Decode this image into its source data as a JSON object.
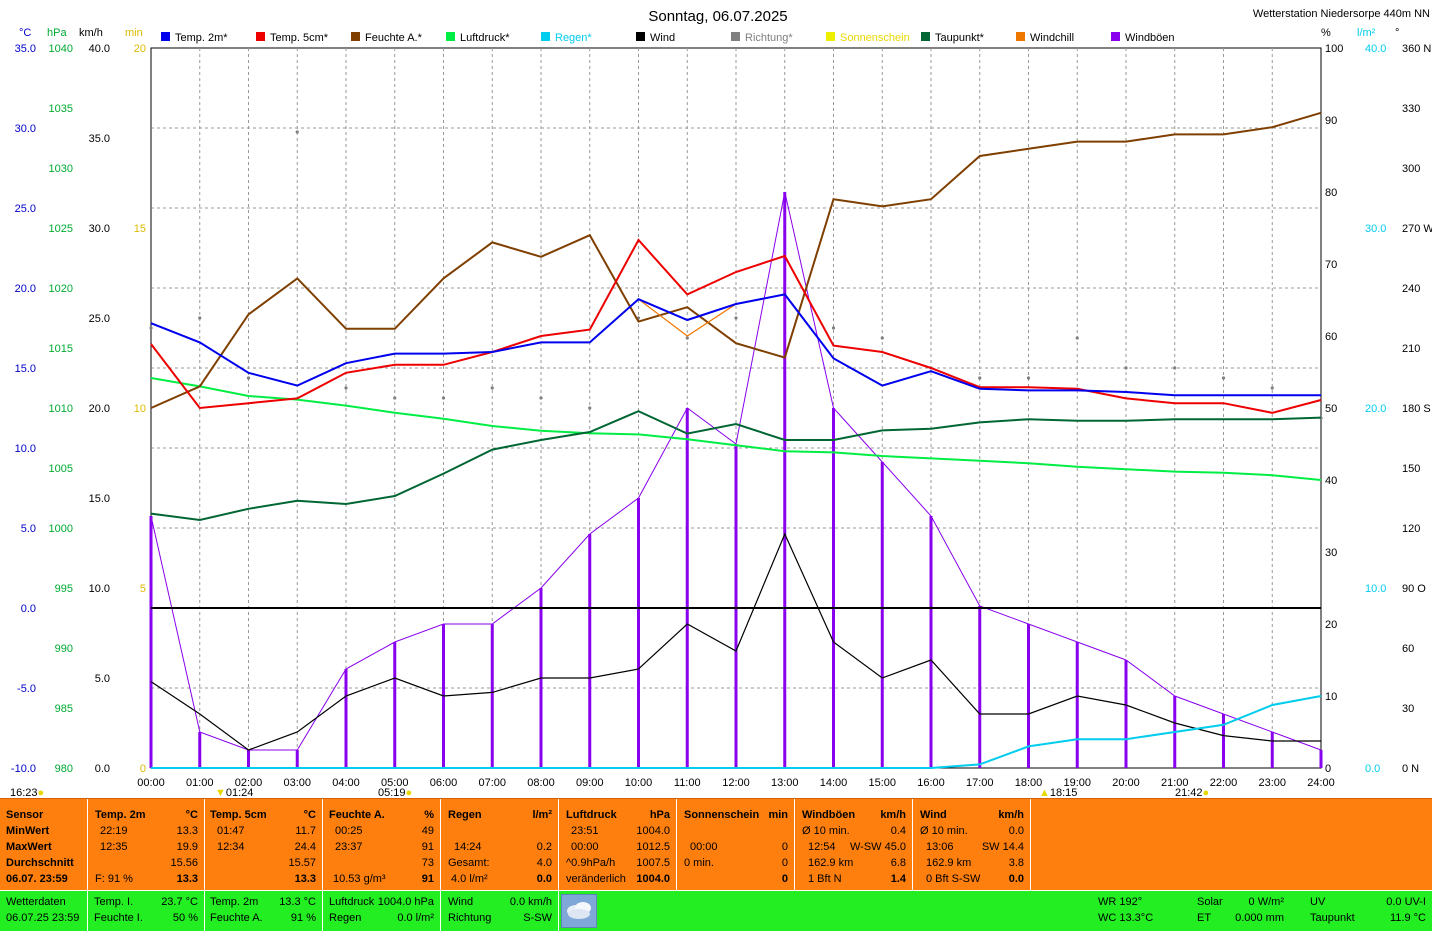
{
  "header": {
    "title": "Sonntag, 06.07.2025",
    "station": "Wetterstation Niedersorpe 440m NN"
  },
  "axes_units": {
    "temp": "°C",
    "pressure": "hPa",
    "speed": "km/h",
    "minutes": "min",
    "percent": "%",
    "rain": "l/m²",
    "direction": "°"
  },
  "axis_ticks": {
    "temp": [
      "35.0",
      "30.0",
      "25.0",
      "20.0",
      "15.0",
      "10.0",
      "5.0",
      "0.0",
      "-5.0",
      "-10.0"
    ],
    "pressure": [
      "1040",
      "1035",
      "1030",
      "1025",
      "1020",
      "1015",
      "1010",
      "1005",
      "1000",
      "995",
      "990",
      "985",
      "980"
    ],
    "speed": [
      "40.0",
      "35.0",
      "30.0",
      "25.0",
      "20.0",
      "15.0",
      "10.0",
      "5.0",
      "0.0"
    ],
    "minutes": [
      "20",
      "15",
      "10",
      "5",
      "0"
    ],
    "percent": [
      "100",
      "90",
      "80",
      "70",
      "60",
      "50",
      "40",
      "30",
      "20",
      "10",
      "0"
    ],
    "rain": [
      "40.0",
      "30.0",
      "20.0",
      "10.0",
      "0.0"
    ],
    "direction": [
      "360 N",
      "330",
      "300",
      "270 W",
      "240",
      "210",
      "180 S",
      "150",
      "120",
      "90 O",
      "60",
      "30",
      "0 N"
    ]
  },
  "sun": {
    "sunrise": "05:19",
    "sunset": "21:42",
    "mark1": "16:23",
    "mark2": "01:24",
    "mark3": "18:15"
  },
  "chart_data": {
    "type": "line",
    "x": [
      "00:00",
      "01:00",
      "02:00",
      "03:00",
      "04:00",
      "05:00",
      "06:00",
      "07:00",
      "08:00",
      "09:00",
      "10:00",
      "11:00",
      "12:00",
      "13:00",
      "14:00",
      "15:00",
      "16:00",
      "17:00",
      "18:00",
      "19:00",
      "20:00",
      "21:00",
      "22:00",
      "23:00",
      "24:00"
    ],
    "xlabel": "",
    "ylim_temp": [
      -10,
      35
    ],
    "ylim_pressure": [
      980,
      1040
    ],
    "ylim_speed": [
      0,
      40
    ],
    "ylim_percent": [
      0,
      100
    ],
    "ylim_rain": [
      0,
      40
    ],
    "ylim_direction": [
      0,
      360
    ],
    "grid": true,
    "legend_position": "top",
    "series": [
      {
        "name": "Temp. 2m*",
        "color": "#0000ee",
        "axis": "temp",
        "values": [
          17.8,
          16.6,
          14.7,
          13.9,
          15.3,
          15.9,
          15.9,
          16.0,
          16.6,
          16.6,
          19.3,
          18.0,
          19.0,
          19.6,
          15.6,
          13.9,
          14.8,
          13.7,
          13.6,
          13.6,
          13.5,
          13.3,
          13.3,
          13.3,
          13.3
        ]
      },
      {
        "name": "Temp. 5cm*",
        "color": "#ee0000",
        "axis": "temp",
        "values": [
          16.5,
          12.5,
          12.8,
          13.1,
          14.7,
          15.2,
          15.2,
          16.0,
          17.0,
          17.4,
          23.0,
          19.6,
          21.0,
          22.0,
          16.4,
          16.0,
          15.0,
          13.8,
          13.8,
          13.7,
          13.1,
          12.8,
          12.8,
          12.2,
          13.0
        ]
      },
      {
        "name": "Feuchte A.*",
        "color": "#7f3f00",
        "axis": "percent",
        "values": [
          50,
          53,
          63,
          68,
          61,
          61,
          68,
          73,
          71,
          74,
          62,
          64,
          59,
          57,
          79,
          78,
          79,
          85,
          86,
          87,
          87,
          88,
          88,
          89,
          91
        ]
      },
      {
        "name": "Luftdruck*",
        "color": "#00ee44",
        "axis": "pressure",
        "values": [
          1012.5,
          1011.8,
          1011.0,
          1010.7,
          1010.2,
          1009.6,
          1009.1,
          1008.5,
          1008.1,
          1007.9,
          1007.8,
          1007.4,
          1006.9,
          1006.4,
          1006.3,
          1006.0,
          1005.8,
          1005.6,
          1005.4,
          1005.1,
          1004.9,
          1004.7,
          1004.6,
          1004.4,
          1004.0
        ]
      },
      {
        "name": "Taupunkt*",
        "color": "#006633",
        "axis": "temp",
        "values": [
          5.9,
          5.5,
          6.2,
          6.7,
          6.5,
          7.0,
          8.4,
          9.9,
          10.5,
          11.0,
          12.3,
          10.9,
          11.5,
          10.5,
          10.5,
          11.1,
          11.2,
          11.6,
          11.8,
          11.7,
          11.7,
          11.8,
          11.8,
          11.8,
          11.9
        ]
      },
      {
        "name": "Wind",
        "color": "#000000",
        "axis": "speed",
        "values": [
          4.8,
          3.0,
          1.0,
          2.0,
          4.0,
          5.0,
          4.0,
          4.2,
          5.0,
          5.0,
          5.5,
          8.0,
          6.5,
          13.0,
          7.0,
          5.0,
          6.0,
          3.0,
          3.0,
          4.0,
          3.5,
          2.5,
          1.8,
          1.5,
          1.5
        ]
      },
      {
        "name": "Windböen",
        "color": "#8800ee",
        "axis": "speed",
        "values": [
          14.0,
          2.0,
          1.0,
          1.0,
          5.5,
          7.0,
          8.0,
          8.0,
          10.0,
          13.0,
          15.0,
          20.0,
          18.0,
          32.0,
          20.0,
          17.0,
          14.0,
          9.0,
          8.0,
          7.0,
          6.0,
          4.0,
          3.0,
          2.0,
          1.0
        ]
      },
      {
        "name": "Regen*",
        "color": "#00ccee",
        "axis": "rain",
        "values": [
          0,
          0,
          0,
          0,
          0,
          0,
          0,
          0,
          0,
          0,
          0,
          0,
          0,
          0,
          0,
          0,
          0,
          0.2,
          1.2,
          1.6,
          1.6,
          2.0,
          2.4,
          3.5,
          4.0
        ]
      },
      {
        "name": "Richtung*",
        "color": "#808080",
        "axis": "direction",
        "values": [
          220,
          225,
          195,
          318,
          190,
          185,
          185,
          190,
          185,
          180,
          225,
          215,
          225,
          200,
          220,
          215,
          200,
          195,
          195,
          215,
          200,
          200,
          195,
          190,
          175
        ]
      },
      {
        "name": "Windchill",
        "color": "#ee7700",
        "axis": "temp",
        "values": [
          17.8,
          16.6,
          14.7,
          13.9,
          15.3,
          15.9,
          15.9,
          16.0,
          16.6,
          16.6,
          19.3,
          17.0,
          19.0,
          19.6,
          15.6,
          13.9,
          14.8,
          13.7,
          13.6,
          13.6,
          13.5,
          13.3,
          13.3,
          13.3,
          13.3
        ]
      },
      {
        "name": "Sonnenschein",
        "color": "#eeee00",
        "axis": "minutes",
        "values": [
          0,
          0,
          0,
          0,
          0,
          0,
          0,
          0,
          0,
          0,
          0,
          0,
          0,
          0,
          0,
          0,
          0,
          0,
          0,
          0,
          0,
          0,
          0,
          0,
          0
        ]
      }
    ]
  },
  "table": {
    "sensor": {
      "header": "Sensor",
      "rows": [
        "MinWert",
        "MaxWert",
        "Durchschnitt",
        "06.07. 23:59"
      ]
    },
    "temp2m": {
      "header": "Temp. 2m",
      "unit": "°C",
      "min_time": "22:19",
      "min_val": "13.3",
      "max_time": "12:35",
      "max_val": "19.9",
      "avg": "15.56",
      "last_f": "F: 91 %",
      "last_val": "13.3"
    },
    "temp5cm": {
      "header": "Temp. 5cm",
      "unit": "°C",
      "min_time": "01:47",
      "min_val": "11.7",
      "max_time": "12:34",
      "max_val": "24.4",
      "avg": "15.57",
      "last_val": "13.3"
    },
    "feuchte": {
      "header": "Feuchte A.",
      "unit": "%",
      "min_time": "00:25",
      "min_val": "49",
      "max_time": "23:37",
      "max_val": "91",
      "avg": "73",
      "last_abs": "10.53 g/m³",
      "last_val": "91"
    },
    "regen": {
      "header": "Regen",
      "unit": "l/m²",
      "r2_time": "14:24",
      "r2_val": "0.2",
      "r3_label": "Gesamt:",
      "r3_val": "4.0",
      "last_rate": "4.0 l/m²",
      "last_val": "0.0"
    },
    "luftdruck": {
      "header": "Luftdruck",
      "unit": "hPa",
      "min_time": "23:51",
      "min_val": "1004.0",
      "max_time": "00:00",
      "max_val": "1012.5",
      "avg_label": "^0.9hPa/h",
      "avg": "1007.5",
      "trend": "veränderlich",
      "last_val": "1004.0"
    },
    "sonne": {
      "header": "Sonnenschein",
      "unit": "min",
      "r2_time": "00:00",
      "r2_val": "0",
      "r3_label": "0 min.",
      "r3_val": "0",
      "last_val": "0"
    },
    "boeen": {
      "header": "Windböen",
      "unit": "km/h",
      "r1_label": "Ø 10 min.",
      "r1_val": "0.4",
      "r2_time": "12:54",
      "r2_dir": "W-SW 45.0",
      "r3_label": "162.9 km",
      "r3_val": "6.8",
      "last_label": "1 Bft N",
      "last_val": "1.4"
    },
    "wind": {
      "header": "Wind",
      "unit": "km/h",
      "r1_label": "Ø 10 min.",
      "r1_val": "0.0",
      "r2_time": "13:06",
      "r2_dir": "SW 14.4",
      "r3_label": "162.9 km",
      "r3_val": "3.8",
      "last_label": "0 Bft S-SW",
      "last_val": "0.0"
    }
  },
  "footer": {
    "c1a": "Wetterdaten",
    "c1b": "06.07.25 23:59",
    "c2a_label": "Temp. I.",
    "c2a_val": "23.7 °C",
    "c2b_label": "Feuchte I.",
    "c2b_val": "50 %",
    "c3a_label": "Temp. 2m",
    "c3a_val": "13.3 °C",
    "c3b_label": "Feuchte A.",
    "c3b_val": "91 %",
    "c4a_label": "Luftdruck",
    "c4a_val": "1004.0 hPa",
    "c4b_label": "Regen",
    "c4b_val": "0.0 l/m²",
    "c5a_label": "Wind",
    "c5a_val": "0.0 km/h",
    "c5b_label": "Richtung",
    "c5b_val": "S-SW",
    "wr": "WR 192°",
    "wc": "WC 13.3°C",
    "solar_label": "Solar",
    "solar_val": "0 W/m²",
    "et_label": "ET",
    "et_val": "0.000 mm",
    "uv_label": "UV",
    "uv_val": "0.0 UV-I",
    "tp_label": "Taupunkt",
    "tp_val": "11.9 °C"
  }
}
